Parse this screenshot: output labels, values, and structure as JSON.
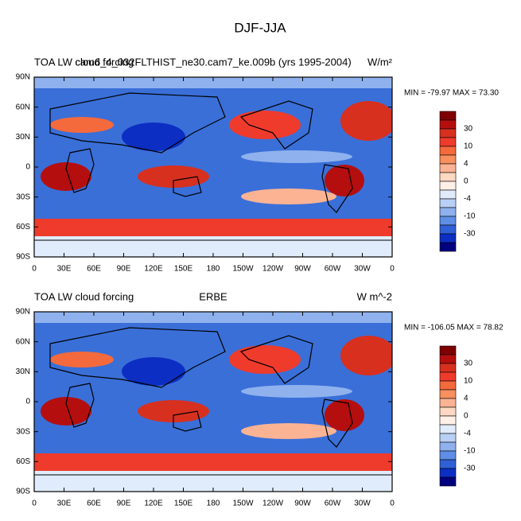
{
  "title": "DJF-JJA",
  "lat_labels": [
    "90N",
    "60N",
    "30N",
    "0",
    "30S",
    "60S",
    "90S"
  ],
  "lon_labels": [
    "0",
    "30E",
    "60E",
    "90E",
    "120E",
    "150E",
    "180",
    "150W",
    "120W",
    "90W",
    "60W",
    "30W",
    "0"
  ],
  "colorbar_labels": [
    "30",
    "10",
    "4",
    "0",
    "-4",
    "-10",
    "-30"
  ],
  "colorbar_colors": [
    "#7f0000",
    "#b50e0e",
    "#d7301f",
    "#ef3b2c",
    "#f46a3c",
    "#f78f5e",
    "#fcb393",
    "#fdd8c2",
    "#fff0e6",
    "#e0ecfb",
    "#b8d0f5",
    "#8fb2ee",
    "#5f8ee6",
    "#3060d6",
    "#0c2ec2",
    "#00007f"
  ],
  "panels": [
    {
      "left_title": "TOA LW cloud forcing",
      "center_title": "cam6_4_032FLTHIST_ne30.cam7_ke.009b (yrs 1995-2004)",
      "right_title": "W/m²",
      "stats": "MIN = -79.97 MAX =  73.30"
    },
    {
      "left_title": "TOA LW cloud forcing",
      "center_title": "ERBE",
      "right_title": "W m^-2",
      "stats": "MIN = -106.05 MAX =  78.82"
    }
  ]
}
